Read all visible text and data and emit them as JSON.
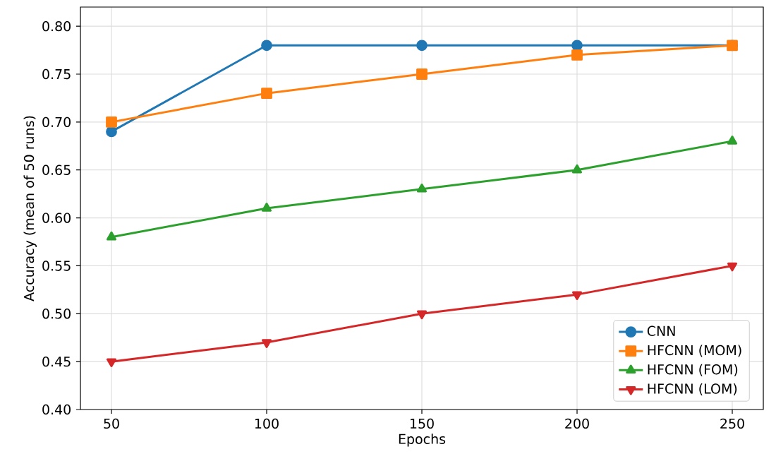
{
  "chart_data": {
    "type": "line",
    "xlabel": "Epochs",
    "ylabel": "Accuracy (mean of 50 runs)",
    "x": [
      50,
      100,
      150,
      200,
      250
    ],
    "series": [
      {
        "name": "CNN",
        "color": "#1f77b4",
        "marker": "circle",
        "values": [
          0.69,
          0.78,
          0.78,
          0.78,
          0.78
        ]
      },
      {
        "name": "HFCNN (MOM)",
        "color": "#ff7f0e",
        "marker": "square",
        "values": [
          0.7,
          0.73,
          0.75,
          0.77,
          0.78
        ]
      },
      {
        "name": "HFCNN (FOM)",
        "color": "#2ca02c",
        "marker": "triangle",
        "values": [
          0.58,
          0.61,
          0.63,
          0.65,
          0.68
        ]
      },
      {
        "name": "HFCNN (LOM)",
        "color": "#d62728",
        "marker": "triangle down",
        "values": [
          0.45,
          0.47,
          0.5,
          0.52,
          0.55
        ]
      }
    ],
    "xlim": [
      40,
      260
    ],
    "ylim": [
      0.4,
      0.82
    ],
    "xticks": [
      50,
      100,
      150,
      200,
      250
    ],
    "yticks": [
      {
        "value": 0.4,
        "label": "0.40"
      },
      {
        "value": 0.45,
        "label": "0.45"
      },
      {
        "value": 0.5,
        "label": "0.50"
      },
      {
        "value": 0.55,
        "label": "0.55"
      },
      {
        "value": 0.6,
        "label": "0.60"
      },
      {
        "value": 0.65,
        "label": "0.65"
      },
      {
        "value": 0.7,
        "label": "0.70"
      },
      {
        "value": 0.75,
        "label": "0.75"
      },
      {
        "value": 0.8,
        "label": "0.80"
      }
    ],
    "grid": true,
    "legend": "bottom right",
    "line_style": "solid"
  }
}
